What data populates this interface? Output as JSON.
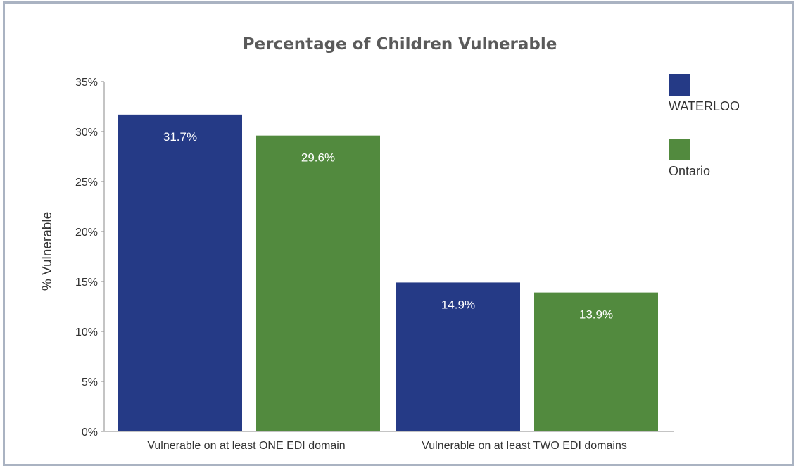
{
  "chart_data": {
    "type": "bar",
    "title": "Percentage of Children Vulnerable",
    "xlabel": "",
    "ylabel": "% Vulnerable",
    "categories": [
      "Vulnerable on at least ONE EDI domain",
      "Vulnerable on at least TWO EDI domains"
    ],
    "series": [
      {
        "name": "WATERLOO",
        "color": "#253a86",
        "values": [
          31.7,
          14.9
        ],
        "labels": [
          "31.7%",
          "14.9%"
        ]
      },
      {
        "name": "Ontario",
        "color": "#528a3e",
        "values": [
          29.6,
          13.9
        ],
        "labels": [
          "29.6%",
          "13.9%"
        ]
      }
    ],
    "ylim": [
      0,
      35
    ],
    "yticks": [
      0,
      5,
      10,
      15,
      20,
      25,
      30,
      35
    ],
    "ytick_labels": [
      "0%",
      "5%",
      "10%",
      "15%",
      "20%",
      "25%",
      "30%",
      "35%"
    ],
    "grid": false,
    "legend_position": "top-right"
  }
}
